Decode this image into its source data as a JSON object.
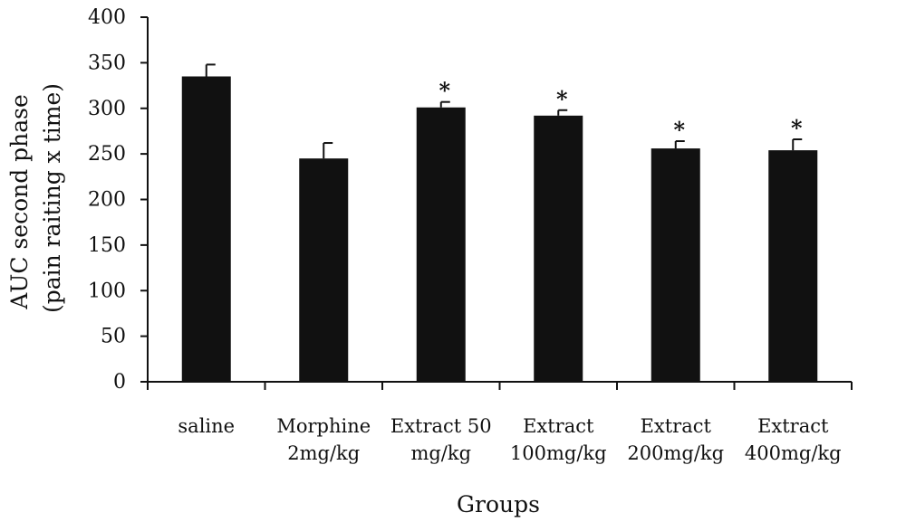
{
  "chart_data": {
    "type": "bar",
    "title": "",
    "xlabel": "Groups",
    "ylabel_lines": [
      "AUC second phase",
      "(pain raiting x time)"
    ],
    "ylim": [
      0,
      400
    ],
    "yticks": [
      0,
      50,
      100,
      150,
      200,
      250,
      300,
      350,
      400
    ],
    "categories": [
      [
        "saline"
      ],
      [
        "Morphine",
        "2mg/kg"
      ],
      [
        "Extract 50",
        "mg/kg"
      ],
      [
        "Extract",
        "100mg/kg"
      ],
      [
        "Extract",
        "200mg/kg"
      ],
      [
        "Extract",
        "400mg/kg"
      ]
    ],
    "values": [
      335,
      245,
      301,
      292,
      256,
      254
    ],
    "errors": [
      13,
      17,
      6,
      6,
      8,
      12
    ],
    "significance": [
      "",
      "",
      "*",
      "*",
      "*",
      "*"
    ],
    "bar_color": "#111111",
    "grid": false,
    "legend": "none"
  }
}
